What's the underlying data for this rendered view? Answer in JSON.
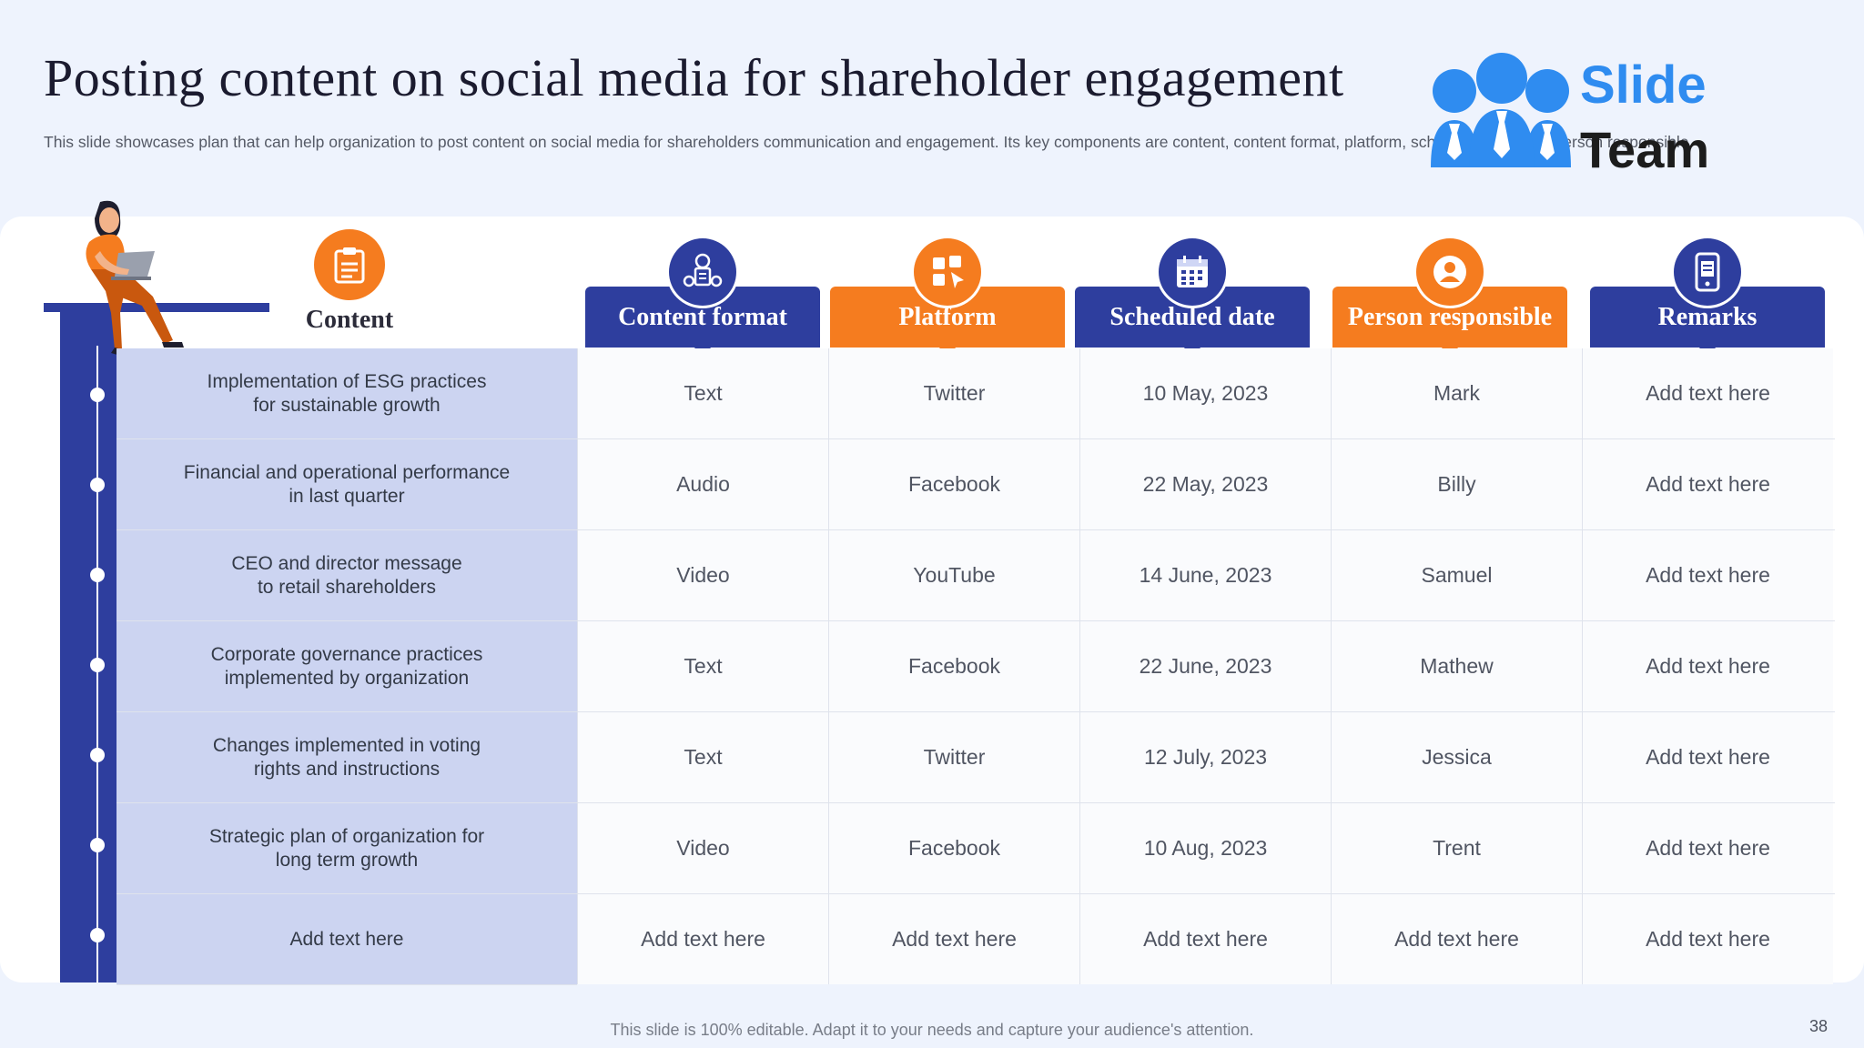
{
  "slide": {
    "title": "Posting content on social media for shareholder engagement",
    "subtitle": "This slide showcases plan that can help organization to post content on social media for shareholders communication and engagement. Its key components are content, content format, platform, scheduled date and person responsible.",
    "footer": "This slide is 100% editable. Adapt it to your needs and capture your audience's attention.",
    "page_number": "38"
  },
  "logo": {
    "word1": "Slide",
    "word2": "Team"
  },
  "colors": {
    "blue": "#2e3e9e",
    "orange": "#f57c1f",
    "content_bg": "#ccd4f1",
    "logo_blue": "#2f8cf0"
  },
  "content_header": {
    "label": "Content",
    "icon": "clipboard-icon"
  },
  "columns": [
    {
      "label": "Content format",
      "icon": "media-icon",
      "color": "blue"
    },
    {
      "label": "Platform",
      "icon": "social-apps-icon",
      "color": "orange"
    },
    {
      "label": "Scheduled date",
      "icon": "calendar-icon",
      "color": "blue"
    },
    {
      "label": "Person responsible",
      "icon": "user-icon",
      "color": "orange"
    },
    {
      "label": "Remarks",
      "icon": "phone-document-icon",
      "color": "blue"
    }
  ],
  "rows": [
    {
      "content": "Implementation of ESG practices\nfor sustainable growth",
      "cells": [
        "Text",
        "Twitter",
        "10 May, 2023",
        "Mark",
        "Add text here"
      ]
    },
    {
      "content": "Financial and operational performance\nin last quarter",
      "cells": [
        "Audio",
        "Facebook",
        "22 May, 2023",
        "Billy",
        "Add text here"
      ]
    },
    {
      "content": "CEO and director message\nto retail shareholders",
      "cells": [
        "Video",
        "YouTube",
        "14 June, 2023",
        "Samuel",
        "Add text here"
      ]
    },
    {
      "content": "Corporate governance practices\nimplemented by organization",
      "cells": [
        "Text",
        "Facebook",
        "22 June, 2023",
        "Mathew",
        "Add text here"
      ]
    },
    {
      "content": "Changes implemented in voting\nrights and instructions",
      "cells": [
        "Text",
        "Twitter",
        "12 July, 2023",
        "Jessica",
        "Add text here"
      ]
    },
    {
      "content": "Strategic plan of organization for\nlong term growth",
      "cells": [
        "Video",
        "Facebook",
        "10 Aug, 2023",
        "Trent",
        "Add text here"
      ]
    },
    {
      "content": "Add text here",
      "cells": [
        "Add text here",
        "Add text here",
        "Add text here",
        "Add text here",
        "Add text here"
      ]
    }
  ]
}
